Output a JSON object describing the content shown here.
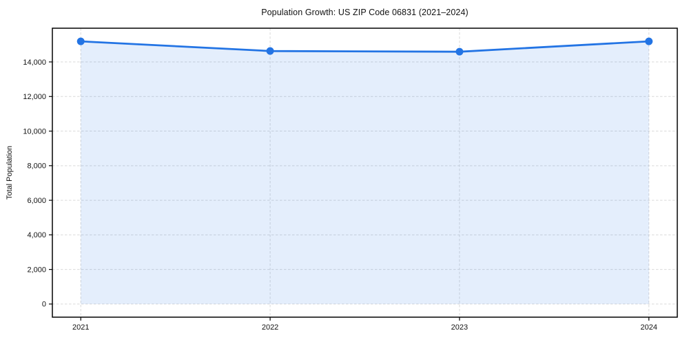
{
  "chart_data": {
    "type": "line",
    "title": "Population Growth: US ZIP Code 06831 (2021–2024)",
    "xlabel": "",
    "ylabel": "Total Population",
    "categories": [
      "2021",
      "2022",
      "2023",
      "2024"
    ],
    "x_values": [
      2021,
      2022,
      2023,
      2024
    ],
    "series": [
      {
        "name": "Total Population",
        "values": [
          15190,
          14630,
          14590,
          15190
        ]
      }
    ],
    "y_ticks": [
      0,
      2000,
      4000,
      6000,
      8000,
      10000,
      12000,
      14000
    ],
    "y_tick_labels": [
      "0",
      "2,000",
      "4,000",
      "6,000",
      "8,000",
      "10,000",
      "12,000",
      "14,000"
    ],
    "x_tick_labels": [
      "2021",
      "2022",
      "2023",
      "2024"
    ],
    "xlim": [
      2020.85,
      2024.15
    ],
    "ylim": [
      -759.5,
      15949.5
    ],
    "grid": true,
    "grid_style": "dashed",
    "legend": false,
    "area_fill": true,
    "area_baseline": 0,
    "line_color": "#2374e4",
    "fill_opacity": 0.12,
    "grid_color": "#d9d9d9",
    "axis_color": "#000000",
    "text_color": "#111111"
  }
}
